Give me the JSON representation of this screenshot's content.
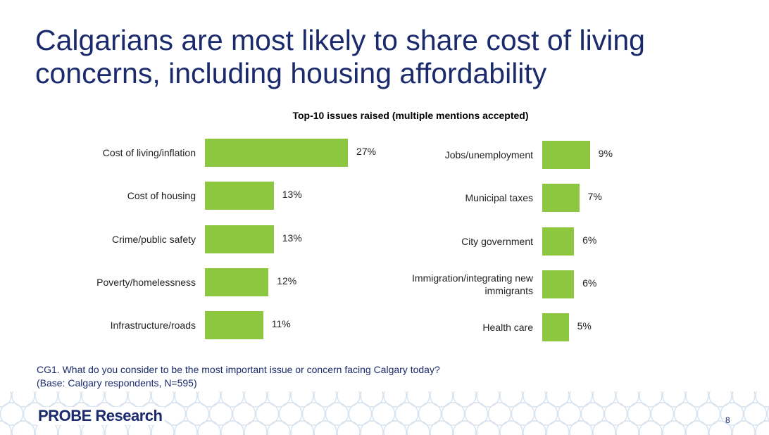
{
  "slide": {
    "title": "Calgarians are most likely to share cost of living concerns, including housing affordability",
    "question_line1": "CG1. What do you consider to be the most important issue or concern facing Calgary today?",
    "question_line2": "(Base: Calgary respondents, N=595)",
    "logo_text_a": "PR",
    "logo_text_o": "O",
    "logo_text_b": "BE Research",
    "page_number": "8"
  },
  "chart_data": {
    "type": "bar",
    "orientation": "horizontal",
    "title": "Top-10 issues raised (multiple mentions accepted)",
    "value_unit": "%",
    "bar_color": "#8dc63f",
    "grid": false,
    "panels": [
      {
        "categories": [
          "Cost of living/inflation",
          "Cost of housing",
          "Crime/public safety",
          "Poverty/homelessness",
          "Infrastructure/roads"
        ],
        "values": [
          27,
          13,
          13,
          12,
          11
        ],
        "labels": [
          "27%",
          "13%",
          "13%",
          "12%",
          "11%"
        ]
      },
      {
        "categories": [
          "Jobs/unemployment",
          "Municipal taxes",
          "City government",
          "Immigration/integrating new immigrants",
          "Health care"
        ],
        "values": [
          9,
          7,
          6,
          6,
          5
        ],
        "labels": [
          "9%",
          "7%",
          "6%",
          "6%",
          "5%"
        ]
      }
    ]
  },
  "colors": {
    "title": "#1a2a6c",
    "bar": "#8dc63f",
    "pattern": "#d6e3ef"
  }
}
